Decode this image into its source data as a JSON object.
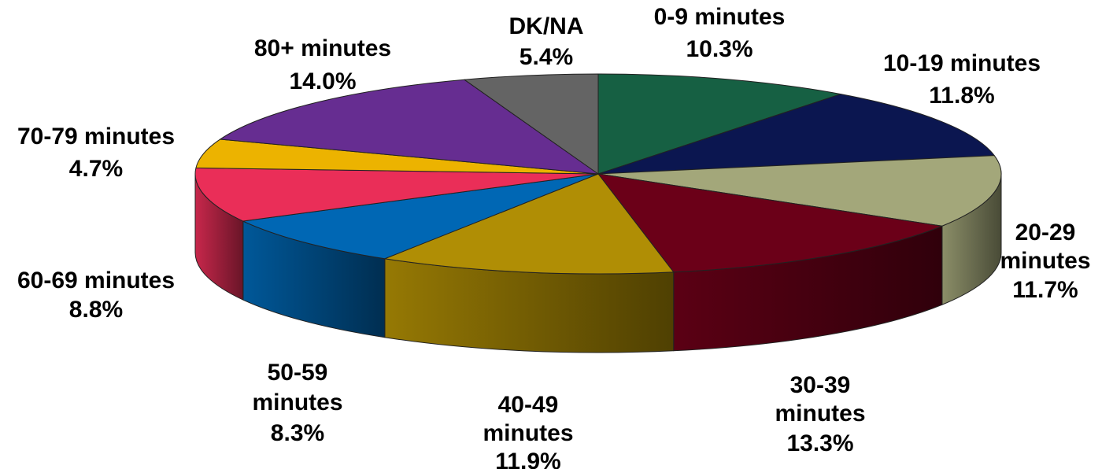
{
  "chart_data": {
    "type": "pie",
    "style": "3d-tilted",
    "title": "",
    "legend": "none",
    "slices": [
      {
        "label": "0-9 minutes",
        "value": 10.3,
        "value_label": "10.3%",
        "color": "#166043"
      },
      {
        "label": "10-19 minutes",
        "value": 11.8,
        "value_label": "11.8%",
        "color": "#0b1650"
      },
      {
        "label": "20-29 minutes",
        "value": 11.7,
        "value_label": "11.7%",
        "color": "#a3a77a"
      },
      {
        "label": "30-39 minutes",
        "value": 13.3,
        "value_label": "13.3%",
        "color": "#6b0018"
      },
      {
        "label": "40-49 minutes",
        "value": 11.9,
        "value_label": "11.9%",
        "color": "#b08e05"
      },
      {
        "label": "50-59 minutes",
        "value": 8.3,
        "value_label": "8.3%",
        "color": "#0067b4"
      },
      {
        "label": "60-69 minutes",
        "value": 8.8,
        "value_label": "8.8%",
        "color": "#ea2e58"
      },
      {
        "label": "70-79 minutes",
        "value": 4.7,
        "value_label": "4.7%",
        "color": "#ecb300"
      },
      {
        "label": "80+ minutes",
        "value": 14.0,
        "value_label": "14.0%",
        "color": "#662d91"
      },
      {
        "label": "DK/NA",
        "value": 5.4,
        "value_label": "5.4%",
        "color": "#646464"
      }
    ]
  }
}
